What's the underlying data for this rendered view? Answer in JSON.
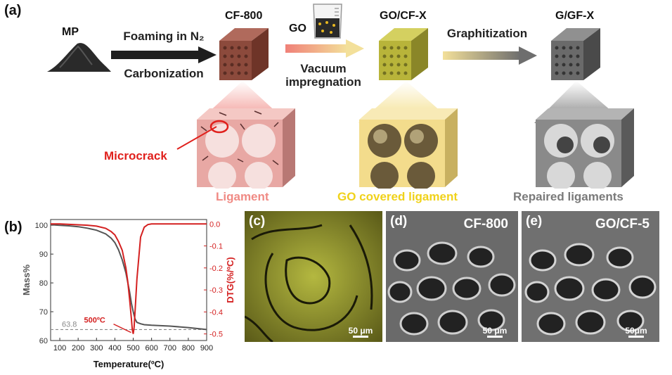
{
  "panel_a": {
    "label": "(a)",
    "mp_label": "MP",
    "step1_top": "Foaming in N₂",
    "step1_bottom": "Carbonization",
    "cf800_label": "CF-800",
    "go_label": "GO",
    "step2_bottom_line1": "Vacuum",
    "step2_bottom_line2": "impregnation",
    "gocfx_label": "GO/CF-X",
    "step3_top": "Graphitization",
    "ggfx_label": "G/GF-X",
    "microcrack_label": "Microcrack",
    "ligament_label": "Ligament",
    "go_ligament_label": "GO covered ligament",
    "repaired_label": "Repaired ligaments",
    "colors": {
      "microcrack": "#e0201c",
      "ligament": "#f08a84",
      "go_ligament": "#f0d21a",
      "repaired": "#7a7a7a"
    }
  },
  "panel_b": {
    "label": "(b)"
  },
  "panel_c": {
    "label": "(c)",
    "scale": "50 μm"
  },
  "panel_d": {
    "label": "(d)",
    "title": "CF-800",
    "scale": "50 μm"
  },
  "panel_e": {
    "label": "(e)",
    "title": "GO/CF-5",
    "scale": "50μm"
  },
  "chart_data": {
    "type": "line",
    "xlabel": "Temperature(ºC)",
    "ylabel_left": "Mass%",
    "ylabel_right": "DTG(%/ºC)",
    "xlim": [
      50,
      900
    ],
    "ylim_left": [
      60,
      102
    ],
    "ylim_right": [
      -0.53,
      0.02
    ],
    "x_ticks": [
      "100",
      "200",
      "300",
      "400",
      "500",
      "600",
      "700",
      "800",
      "900"
    ],
    "y_left_ticks": [
      "60",
      "70",
      "80",
      "90",
      "100"
    ],
    "y_right_ticks": [
      "0.0",
      "-0.1",
      "-0.2",
      "-0.3",
      "-0.4",
      "-0.5"
    ],
    "series": [
      {
        "name": "Mass%",
        "axis": "left",
        "color": "#555555",
        "x": [
          50,
          100,
          150,
          200,
          250,
          300,
          350,
          380,
          400,
          420,
          440,
          460,
          480,
          490,
          500,
          510,
          520,
          540,
          560,
          600,
          700,
          800,
          900
        ],
        "y": [
          100.2,
          100,
          99.8,
          99.5,
          99,
          98.3,
          97,
          95.5,
          94,
          91.5,
          88,
          83.5,
          77,
          73,
          70,
          67.5,
          66.3,
          65.8,
          65.5,
          65.3,
          65,
          64.5,
          63.8
        ]
      },
      {
        "name": "DTG",
        "axis": "right",
        "color": "#d42020",
        "x": [
          50,
          100,
          150,
          200,
          250,
          300,
          350,
          380,
          400,
          420,
          440,
          460,
          470,
          480,
          490,
          495,
          500,
          505,
          510,
          520,
          540,
          560,
          580,
          600,
          650,
          700,
          800,
          900
        ],
        "y": [
          0.0,
          0.0,
          -0.002,
          -0.004,
          -0.006,
          -0.01,
          -0.02,
          -0.035,
          -0.05,
          -0.08,
          -0.12,
          -0.2,
          -0.26,
          -0.34,
          -0.43,
          -0.48,
          -0.5,
          -0.47,
          -0.4,
          -0.25,
          -0.06,
          -0.015,
          -0.003,
          0.0,
          0.0,
          0.0,
          0.0,
          0.0
        ]
      }
    ],
    "annotations": [
      {
        "text": "500ºC",
        "x": 500,
        "y_right": -0.5,
        "color": "#d42020"
      },
      {
        "text": "63.8",
        "y_left": 63.8,
        "style": "dashed",
        "color": "#888888"
      }
    ]
  }
}
